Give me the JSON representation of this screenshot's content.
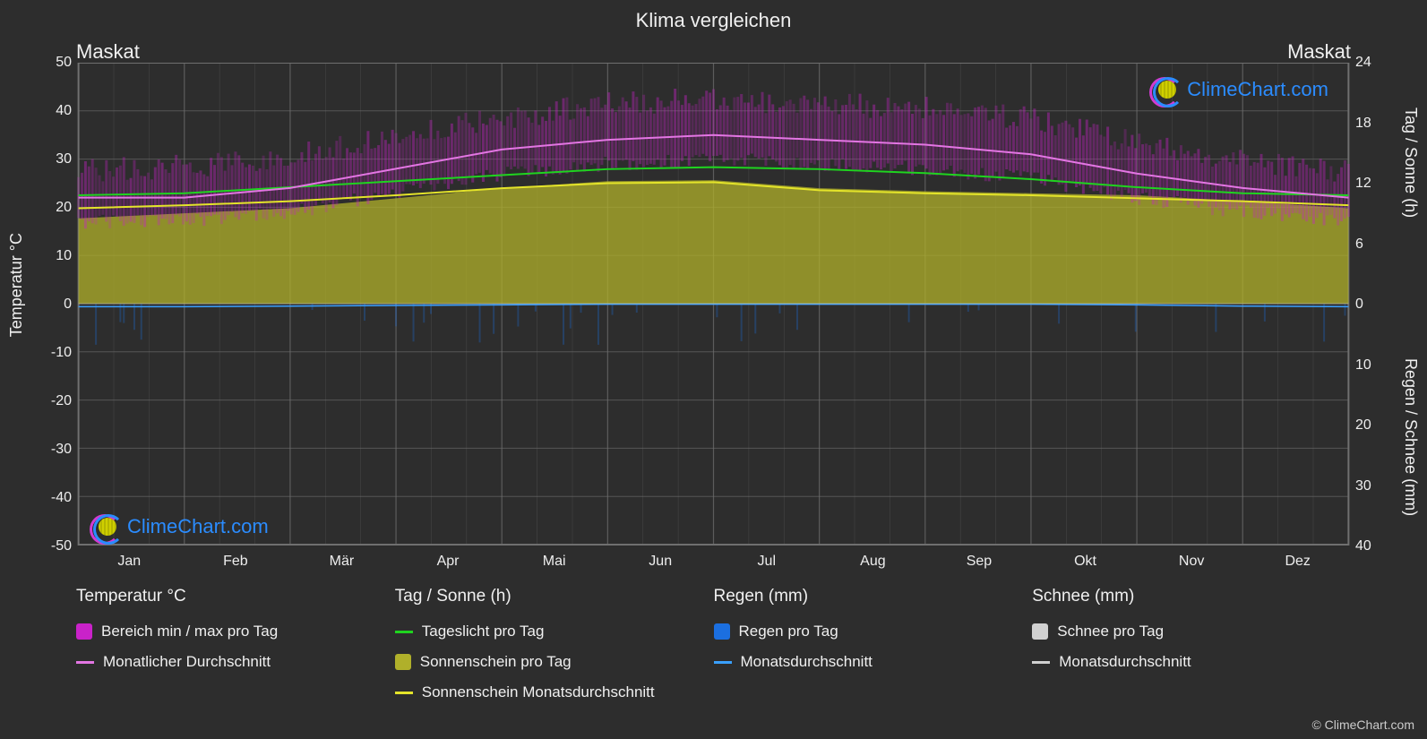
{
  "title": "Klima vergleichen",
  "location_left": "Maskat",
  "location_right": "Maskat",
  "copyright": "© ClimeChart.com",
  "brand": "ClimeChart.com",
  "axes": {
    "y_left_label": "Temperatur °C",
    "y_right_label_top": "Tag / Sonne (h)",
    "y_right_label_bot": "Regen / Schnee (mm)",
    "y_left_min": -50,
    "y_left_max": 50,
    "y_left_step": 10,
    "y_left_ticks": [
      "50",
      "40",
      "30",
      "20",
      "10",
      "0",
      "-10",
      "-20",
      "-30",
      "-40",
      "-50"
    ],
    "y_right_top_min": 0,
    "y_right_top_max": 24,
    "y_right_top_step": 6,
    "y_right_top_ticks": [
      "24",
      "18",
      "12",
      "6",
      "0"
    ],
    "y_right_bot_ticks": [
      "10",
      "20",
      "30",
      "40"
    ],
    "months": [
      "Jan",
      "Feb",
      "Mär",
      "Apr",
      "Mai",
      "Jun",
      "Jul",
      "Aug",
      "Sep",
      "Okt",
      "Nov",
      "Dez"
    ]
  },
  "styling": {
    "background_color": "#2d2d2d",
    "grid_color": "#707070",
    "grid_width": 1,
    "border_color": "#707070",
    "minmax_fill": "#c922c9",
    "minmax_fill_opacity": 0.55,
    "monthly_avg_color": "#e376e3",
    "monthly_avg_width": 2,
    "daylight_color": "#1fd41f",
    "daylight_width": 2,
    "sunshine_area_color": "#b0b02a",
    "sunshine_area_opacity": 0.75,
    "sunshine_avg_color": "#e4e42a",
    "sunshine_avg_width": 2,
    "rain_day_color": "#1b6fe0",
    "rain_day_opacity": 0.3,
    "rain_month_color": "#3aa0ff",
    "rain_month_width": 1.5,
    "snow_day_color": "#d0d0d0",
    "snow_month_color": "#d0d0d0",
    "title_fontsize": 22,
    "label_fontsize": 18,
    "tick_fontsize": 16,
    "legend_fontsize": 17,
    "brand_color": "#2b8cff"
  },
  "series": {
    "temp_monthly_avg": [
      22,
      22,
      24,
      28,
      32,
      34,
      35,
      34,
      33,
      31,
      27,
      24,
      22
    ],
    "temp_range_high": [
      26,
      27,
      29,
      33,
      37,
      40,
      41,
      40,
      39,
      37,
      32,
      28,
      26
    ],
    "temp_range_low": [
      17,
      17,
      19,
      23,
      27,
      29,
      30,
      29,
      28,
      26,
      22,
      19,
      17
    ],
    "daylight_h": [
      10.8,
      11.0,
      11.6,
      12.2,
      12.8,
      13.4,
      13.6,
      13.4,
      13.0,
      12.4,
      11.6,
      11.0,
      10.8
    ],
    "sunshine_h_area": [
      8.5,
      9.0,
      9.5,
      10.5,
      11.5,
      12.2,
      12.3,
      11.5,
      11.2,
      11.0,
      10.8,
      10.2,
      9.5
    ],
    "sunshine_h_avg": [
      9.5,
      9.8,
      10.2,
      10.8,
      11.5,
      12.0,
      12.1,
      11.3,
      11.0,
      10.8,
      10.5,
      10.2,
      9.8
    ],
    "rain_monthly_mm": [
      0.5,
      0.5,
      0.4,
      0.3,
      0.2,
      0.1,
      0.1,
      0.1,
      0.1,
      0.1,
      0.2,
      0.4,
      0.5
    ],
    "snow_monthly_mm": [
      0,
      0,
      0,
      0,
      0,
      0,
      0,
      0,
      0,
      0,
      0,
      0,
      0
    ]
  },
  "legend": {
    "g1_head": "Temperatur °C",
    "g1_i1": "Bereich min / max pro Tag",
    "g1_i2": "Monatlicher Durchschnitt",
    "g2_head": "Tag / Sonne (h)",
    "g2_i1": "Tageslicht pro Tag",
    "g2_i2": "Sonnenschein pro Tag",
    "g2_i3": "Sonnenschein Monatsdurchschnitt",
    "g3_head": "Regen (mm)",
    "g3_i1": "Regen pro Tag",
    "g3_i2": "Monatsdurchschnitt",
    "g4_head": "Schnee (mm)",
    "g4_i1": "Schnee pro Tag",
    "g4_i2": "Monatsdurchschnitt"
  }
}
